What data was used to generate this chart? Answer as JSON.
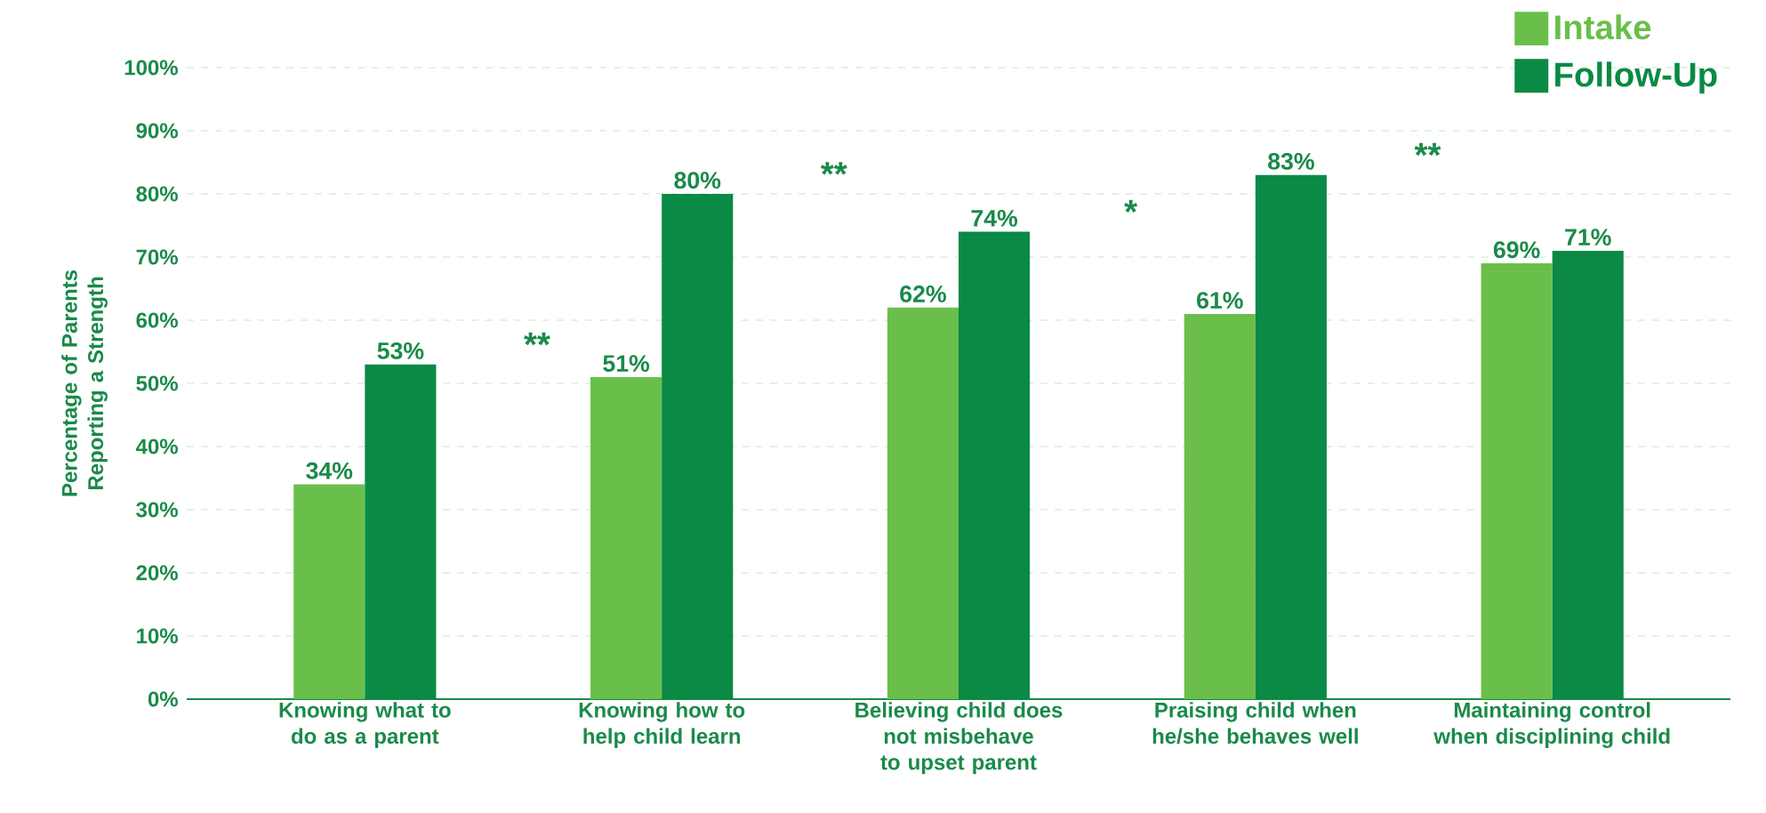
{
  "chart_data": {
    "type": "bar",
    "ylabel": "Percentage of Parents Reporting a Strength",
    "categories": [
      "Knowing what to do as a parent",
      "Knowing how to help child learn",
      "Believing child does not misbehave to upset parent",
      "Praising child when he/she behaves well",
      "Maintaining control when disciplining child"
    ],
    "series": [
      {
        "name": "Intake",
        "color": "#6abf4b",
        "values": [
          34,
          51,
          62,
          61,
          69
        ],
        "value_labels": [
          "34%",
          "51%",
          "62%",
          "61%",
          "69%"
        ]
      },
      {
        "name": "Follow-Up",
        "color": "#0a8a45",
        "values": [
          53,
          80,
          74,
          83,
          71
        ],
        "value_labels": [
          "53%",
          "80%",
          "74%",
          "83%",
          "71%"
        ]
      }
    ],
    "ylim": [
      0,
      100
    ],
    "yticks": [
      {
        "value": 0,
        "label": "0%"
      },
      {
        "value": 10,
        "label": "10%"
      },
      {
        "value": 20,
        "label": "20%"
      },
      {
        "value": 30,
        "label": "30%"
      },
      {
        "value": 40,
        "label": "40%"
      },
      {
        "value": 50,
        "label": "50%"
      },
      {
        "value": 60,
        "label": "60%"
      },
      {
        "value": 70,
        "label": "70%"
      },
      {
        "value": 80,
        "label": "80%"
      },
      {
        "value": 90,
        "label": "90%"
      },
      {
        "value": 100,
        "label": "100%"
      }
    ],
    "grid": "y",
    "legend": "top right",
    "annotations": [
      "**",
      "**",
      "*",
      "**"
    ]
  }
}
